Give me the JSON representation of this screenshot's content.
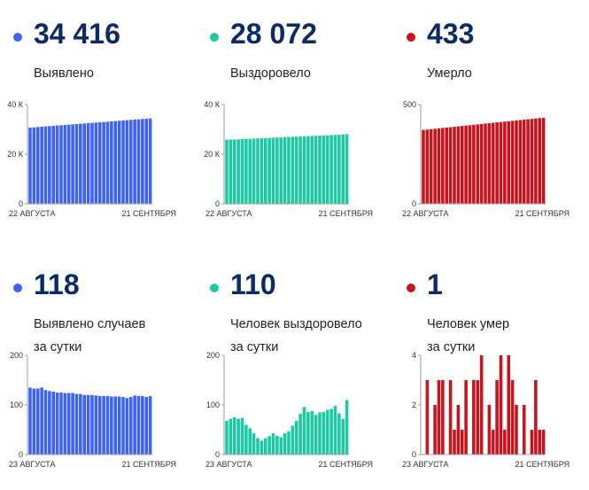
{
  "colors": {
    "blue": "#3d63f0",
    "teal": "#1cc9a2",
    "red": "#c8141e",
    "number": "#0b2a66"
  },
  "panels": [
    {
      "id": "detected",
      "value": "34 416",
      "label_lines": [
        "Выявлено"
      ],
      "color": "blue"
    },
    {
      "id": "recovered",
      "value": "28 072",
      "label_lines": [
        "Выздоровело"
      ],
      "color": "teal"
    },
    {
      "id": "died",
      "value": "433",
      "label_lines": [
        "Умерло"
      ],
      "color": "red"
    },
    {
      "id": "detected-daily",
      "value": "118",
      "label_lines": [
        "Выявлено случаев",
        "за сутки"
      ],
      "color": "blue"
    },
    {
      "id": "recovered-daily",
      "value": "110",
      "label_lines": [
        "Человек выздоровело",
        "за сутки"
      ],
      "color": "teal"
    },
    {
      "id": "died-daily",
      "value": "1",
      "label_lines": [
        "Человек умер",
        "за сутки"
      ],
      "color": "red"
    }
  ],
  "chart_data": [
    {
      "type": "bar",
      "series_color": "blue",
      "ylim": [
        0,
        40000
      ],
      "yticks": [
        {
          "value": 0,
          "label": "0"
        },
        {
          "value": 20000,
          "label": "20 К"
        },
        {
          "value": 40000,
          "label": "40 К"
        }
      ],
      "x_start_label": "22 АВГУСТА",
      "x_end_label": "21 СЕНТЯБРЯ",
      "values": [
        30700,
        30820,
        30940,
        31060,
        31180,
        31300,
        31420,
        31540,
        31660,
        31780,
        31900,
        32020,
        32140,
        32260,
        32380,
        32500,
        32620,
        32740,
        32860,
        32980,
        33100,
        33220,
        33340,
        33460,
        33580,
        33700,
        33820,
        33940,
        34060,
        34180,
        34300,
        34416
      ]
    },
    {
      "type": "bar",
      "series_color": "teal",
      "ylim": [
        0,
        40000
      ],
      "yticks": [
        {
          "value": 0,
          "label": "0"
        },
        {
          "value": 20000,
          "label": "20 К"
        },
        {
          "value": 40000,
          "label": "40 К"
        }
      ],
      "x_start_label": "22 АВГУСТА",
      "x_end_label": "21 СЕНТЯБРЯ",
      "values": [
        25800,
        25870,
        25940,
        26010,
        26080,
        26150,
        26220,
        26290,
        26360,
        26430,
        26500,
        26570,
        26640,
        26710,
        26780,
        26850,
        26920,
        26990,
        27060,
        27130,
        27200,
        27270,
        27340,
        27410,
        27480,
        27550,
        27620,
        27690,
        27760,
        27840,
        27950,
        28072
      ]
    },
    {
      "type": "bar",
      "series_color": "red",
      "ylim": [
        0,
        500
      ],
      "yticks": [
        {
          "value": 0,
          "label": "0"
        },
        {
          "value": 500,
          "label": "500"
        }
      ],
      "x_start_label": "22 АВГУСТА",
      "x_end_label": "21 СЕНТЯБРЯ",
      "values": [
        372,
        374,
        376,
        378,
        380,
        382,
        384,
        386,
        388,
        390,
        392,
        394,
        396,
        398,
        400,
        402,
        404,
        406,
        408,
        410,
        412,
        414,
        416,
        418,
        420,
        422,
        424,
        426,
        428,
        430,
        432,
        433
      ]
    },
    {
      "type": "bar",
      "series_color": "blue",
      "ylim": [
        0,
        200
      ],
      "yticks": [
        {
          "value": 0,
          "label": "0"
        },
        {
          "value": 100,
          "label": "100"
        },
        {
          "value": 200,
          "label": "200"
        }
      ],
      "x_start_label": "23 АВГУСТА",
      "x_end_label": "21 СЕНТЯБРЯ",
      "values": [
        135,
        133,
        133,
        135,
        130,
        128,
        127,
        125,
        125,
        124,
        124,
        124,
        122,
        122,
        120,
        120,
        120,
        119,
        118,
        118,
        118,
        117,
        117,
        117,
        116,
        114,
        116,
        119,
        118,
        118,
        116,
        118
      ]
    },
    {
      "type": "bar",
      "series_color": "teal",
      "ylim": [
        0,
        200
      ],
      "yticks": [
        {
          "value": 0,
          "label": "0"
        },
        {
          "value": 100,
          "label": "100"
        },
        {
          "value": 200,
          "label": "200"
        }
      ],
      "x_start_label": "23 АВГУСТА",
      "x_end_label": "21 СЕНТЯБРЯ",
      "values": [
        68,
        72,
        75,
        72,
        74,
        60,
        53,
        43,
        33,
        28,
        33,
        37,
        43,
        38,
        35,
        43,
        47,
        58,
        68,
        82,
        96,
        86,
        88,
        80,
        85,
        86,
        90,
        92,
        98,
        83,
        72,
        110
      ]
    },
    {
      "type": "bar",
      "series_color": "red",
      "ylim": [
        0,
        4
      ],
      "yticks": [
        {
          "value": 0,
          "label": "0"
        },
        {
          "value": 2,
          "label": "2"
        },
        {
          "value": 4,
          "label": "4"
        }
      ],
      "x_start_label": "23 АВГУСТА",
      "x_end_label": "21 СЕНТЯБРЯ",
      "values": [
        0,
        3,
        0,
        2,
        3,
        3,
        0,
        3,
        1,
        2,
        1,
        3,
        0,
        3,
        3,
        4,
        0,
        2,
        1,
        3,
        4,
        1,
        4,
        3,
        2,
        0,
        2,
        0,
        1,
        3,
        1,
        1
      ]
    }
  ]
}
